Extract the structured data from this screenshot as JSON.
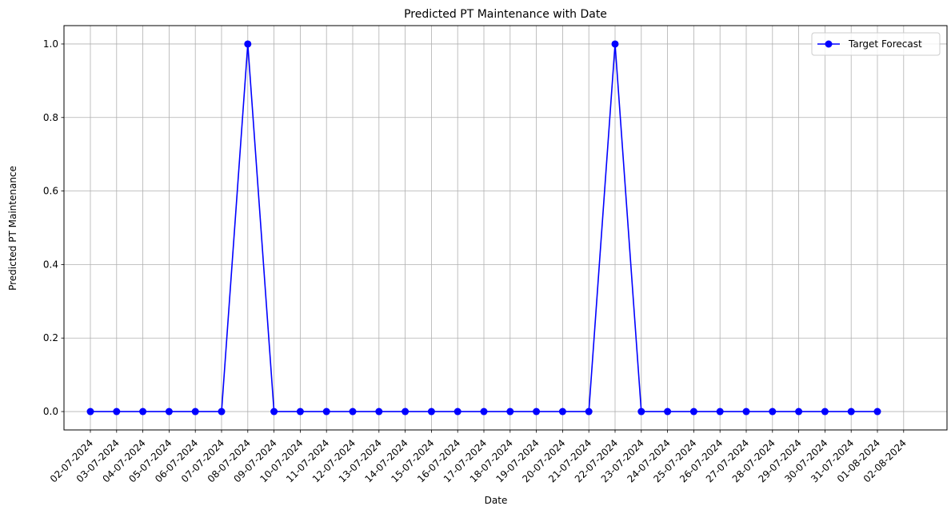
{
  "chart_data": {
    "type": "line",
    "title": "Predicted PT Maintenance with Date",
    "xlabel": "Date",
    "ylabel": "Predicted PT Maintenance",
    "categories": [
      "02-07-2024",
      "03-07-2024",
      "04-07-2024",
      "05-07-2024",
      "06-07-2024",
      "07-07-2024",
      "08-07-2024",
      "09-07-2024",
      "10-07-2024",
      "11-07-2024",
      "12-07-2024",
      "13-07-2024",
      "14-07-2024",
      "15-07-2024",
      "16-07-2024",
      "17-07-2024",
      "18-07-2024",
      "19-07-2024",
      "20-07-2024",
      "21-07-2024",
      "22-07-2024",
      "23-07-2024",
      "24-07-2024",
      "25-07-2024",
      "26-07-2024",
      "27-07-2024",
      "28-07-2024",
      "29-07-2024",
      "30-07-2024",
      "31-07-2024",
      "01-08-2024",
      "02-08-2024"
    ],
    "series": [
      {
        "name": "Target Forecast",
        "color": "#0000ff",
        "marker": "circle",
        "x": [
          "02-07-2024",
          "03-07-2024",
          "04-07-2024",
          "05-07-2024",
          "06-07-2024",
          "07-07-2024",
          "08-07-2024",
          "09-07-2024",
          "10-07-2024",
          "11-07-2024",
          "12-07-2024",
          "13-07-2024",
          "14-07-2024",
          "15-07-2024",
          "16-07-2024",
          "17-07-2024",
          "18-07-2024",
          "19-07-2024",
          "20-07-2024",
          "21-07-2024",
          "22-07-2024",
          "23-07-2024",
          "24-07-2024",
          "25-07-2024",
          "26-07-2024",
          "27-07-2024",
          "28-07-2024",
          "29-07-2024",
          "30-07-2024",
          "31-07-2024",
          "01-08-2024"
        ],
        "values": [
          0,
          0,
          0,
          0,
          0,
          0,
          1,
          0,
          0,
          0,
          0,
          0,
          0,
          0,
          0,
          0,
          0,
          0,
          0,
          0,
          1,
          0,
          0,
          0,
          0,
          0,
          0,
          0,
          0,
          0,
          0
        ]
      }
    ],
    "ylim": [
      -0.05,
      1.05
    ],
    "yticks": [
      0.0,
      0.2,
      0.4,
      0.6,
      0.8,
      1.0
    ],
    "ytick_labels": [
      "0.0",
      "0.2",
      "0.4",
      "0.6",
      "0.8",
      "1.0"
    ],
    "grid": true,
    "legend_position": "top-right",
    "xtick_rotation_deg": 45,
    "axis_color": "#000000",
    "grid_color": "#b0b0b0"
  }
}
